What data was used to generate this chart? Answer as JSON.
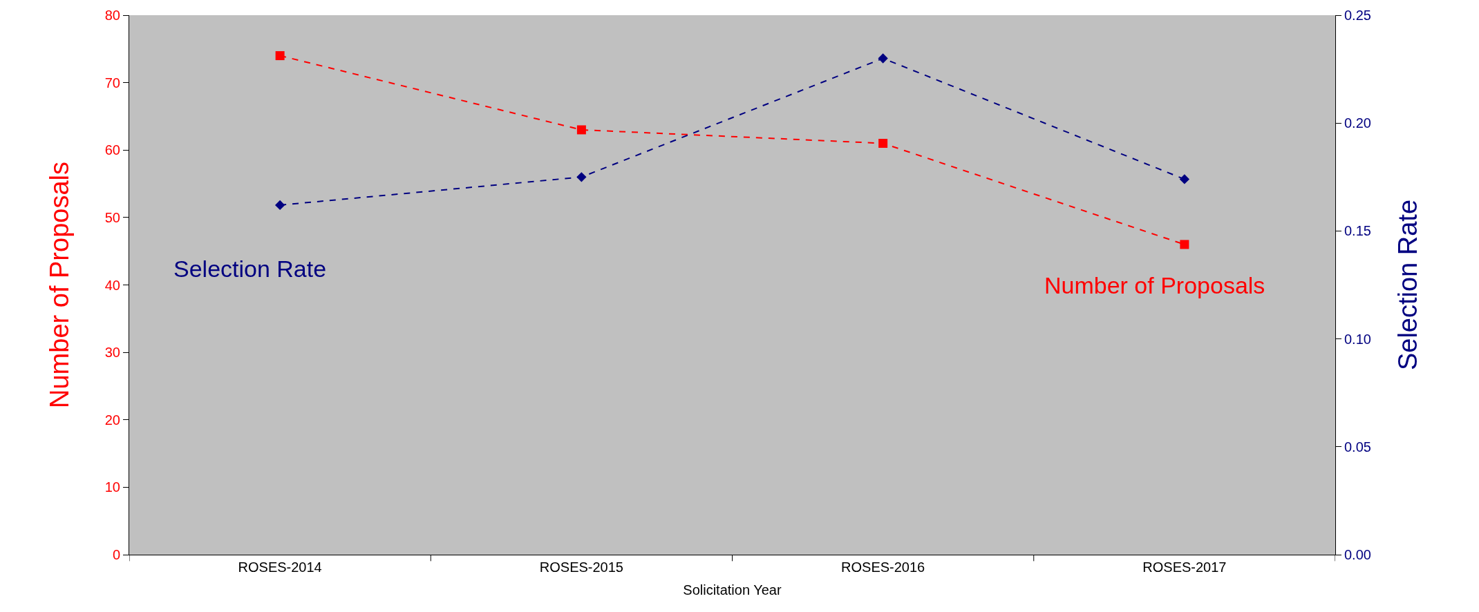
{
  "chart_data": {
    "type": "line",
    "xlabel": "Solicitation Year",
    "ylabel": "Number of Proposals",
    "y2label": "Selection Rate",
    "categories": [
      "ROSES-2014",
      "ROSES-2015",
      "ROSES-2016",
      "ROSES-2017"
    ],
    "series": [
      {
        "name": "Number of Proposals",
        "color": "#ff0000",
        "values": [
          74,
          63,
          61,
          46
        ],
        "marker": "square"
      },
      {
        "name": "Selection Rate",
        "color": "#000080",
        "values": [
          0.162,
          0.175,
          0.23,
          0.174
        ],
        "axis": "y2",
        "marker": "diamond"
      }
    ],
    "ylim": [
      0,
      80
    ],
    "yticks": [
      0,
      10,
      20,
      30,
      40,
      50,
      60,
      70,
      80
    ],
    "y2lim": [
      0,
      0.25
    ],
    "y2ticks": [
      {
        "value": 0,
        "label": "0.00"
      },
      {
        "value": 0.05,
        "label": "0.05"
      },
      {
        "value": 0.1,
        "label": "0.10"
      },
      {
        "value": 0.15,
        "label": "0.15"
      },
      {
        "value": 0.2,
        "label": "0.20"
      },
      {
        "value": 0.25,
        "label": "0.25"
      }
    ],
    "grid": false,
    "legend": false,
    "line_style": "dashed"
  }
}
